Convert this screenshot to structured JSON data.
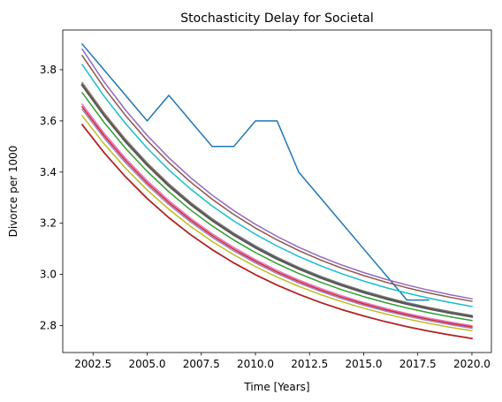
{
  "chart_data": {
    "type": "line",
    "title": "Stochasticity Delay for Societal",
    "xlabel": "Time [Years]",
    "ylabel": "Divorce per 1000",
    "xlim": [
      2001.1,
      2020.9
    ],
    "ylim": [
      2.695,
      3.955
    ],
    "xticks": [
      2002.5,
      2005.0,
      2007.5,
      2010.0,
      2012.5,
      2015.0,
      2017.5,
      2020.0
    ],
    "xtick_labels": [
      "2002.5",
      "2005.0",
      "2007.5",
      "2010.0",
      "2012.5",
      "2015.0",
      "2017.5",
      "2020.0"
    ],
    "yticks": [
      2.8,
      3.0,
      3.2,
      3.4,
      3.6,
      3.8
    ],
    "ytick_labels": [
      "2.8",
      "3.0",
      "3.2",
      "3.4",
      "3.6",
      "3.8"
    ],
    "grid": false,
    "x": [
      2002,
      2003,
      2004,
      2005,
      2006,
      2007,
      2008,
      2009,
      2010,
      2011,
      2012,
      2013,
      2014,
      2015,
      2016,
      2017,
      2018,
      2019,
      2020
    ],
    "series": [
      {
        "color": "#1f77b4",
        "width": 1.5,
        "values": [
          3.9,
          3.8,
          3.7,
          3.6,
          3.7,
          3.6,
          3.5,
          3.5,
          3.6,
          3.6,
          3.4,
          3.3,
          3.2,
          3.1,
          3.0,
          2.9,
          2.9,
          null,
          null
        ]
      },
      {
        "color": "#9467bd",
        "width": 1.5,
        "start": 3.88,
        "end": 2.905
      },
      {
        "color": "#8c564b",
        "width": 1.5,
        "start": 3.855,
        "end": 2.895
      },
      {
        "color": "#17becf",
        "width": 1.5,
        "start": 3.82,
        "end": 2.875
      },
      {
        "color": "#7f7f7f",
        "width": 1.5,
        "start": 3.75,
        "end": 2.84
      },
      {
        "color": "#ff7f0e",
        "width": 1.5,
        "start": 3.745,
        "end": 2.835
      },
      {
        "color": "#595959",
        "width": 2.5,
        "start": 3.74,
        "end": 2.835
      },
      {
        "color": "#2ca02c",
        "width": 1.5,
        "start": 3.71,
        "end": 2.82
      },
      {
        "color": "#e377c2",
        "width": 1.5,
        "start": 3.665,
        "end": 2.8
      },
      {
        "color": "#d62728",
        "width": 1.5,
        "start": 3.655,
        "end": 2.795
      },
      {
        "color": "#9c7ec4",
        "width": 1.5,
        "start": 3.645,
        "end": 2.79
      },
      {
        "color": "#bcbd22",
        "width": 1.5,
        "start": 3.62,
        "end": 2.78
      },
      {
        "color": "#b22222",
        "width": 1.8,
        "start": 3.585,
        "end": 2.75
      }
    ]
  }
}
